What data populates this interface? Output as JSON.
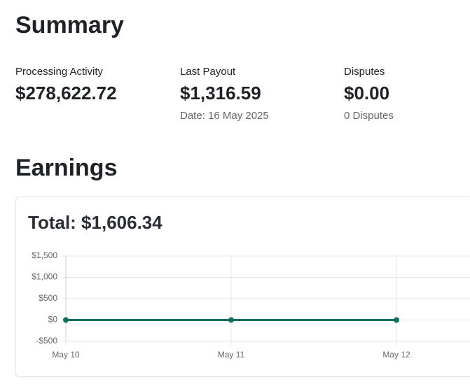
{
  "summary": {
    "title": "Summary",
    "items": [
      {
        "label": "Processing Activity",
        "value": "$278,622.72"
      },
      {
        "label": "Last Payout",
        "value": "$1,316.59",
        "note": "Date: 16 May 2025"
      },
      {
        "label": "Disputes",
        "value": "$0.00",
        "note": "0 Disputes"
      }
    ]
  },
  "earnings": {
    "title": "Earnings",
    "total": "Total: $1,606.34"
  },
  "chart_data": {
    "type": "line",
    "categories": [
      "May 10",
      "May 11",
      "May 12"
    ],
    "series": [
      {
        "color": "#0f6e5f",
        "values": [
          0,
          0,
          0
        ]
      }
    ],
    "ylim": [
      -500,
      1500
    ],
    "yticks": [
      {
        "value": -500,
        "label": "-$500"
      },
      {
        "value": 0,
        "label": "$0"
      },
      {
        "value": 500,
        "label": "$500"
      },
      {
        "value": 1000,
        "label": "$1,000"
      },
      {
        "value": 1500,
        "label": "$1,500"
      }
    ],
    "grid": true
  }
}
